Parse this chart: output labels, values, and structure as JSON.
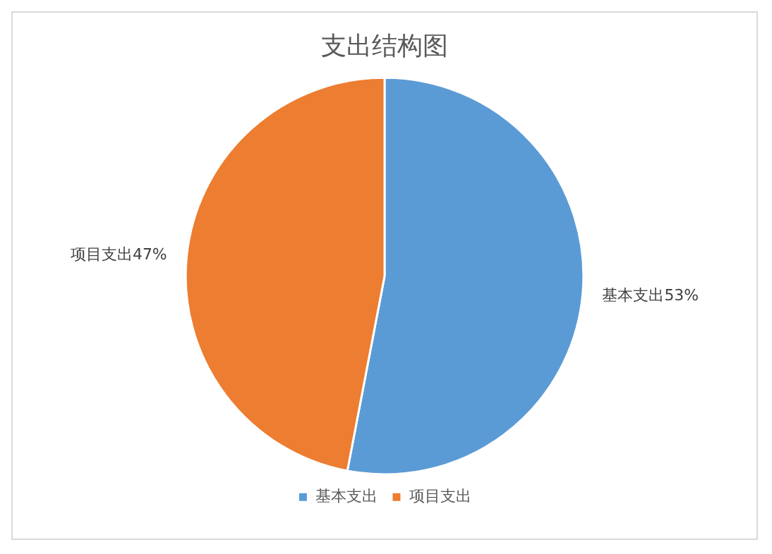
{
  "chart_data": {
    "type": "pie",
    "title": "支出结构图",
    "categories": [
      "基本支出",
      "项目支出"
    ],
    "values": [
      53,
      47
    ],
    "colors": [
      "#5b9bd5",
      "#ed7d31"
    ],
    "value_labels": [
      "基本支出53%",
      "项目支出47%"
    ],
    "legend": "bottom"
  }
}
